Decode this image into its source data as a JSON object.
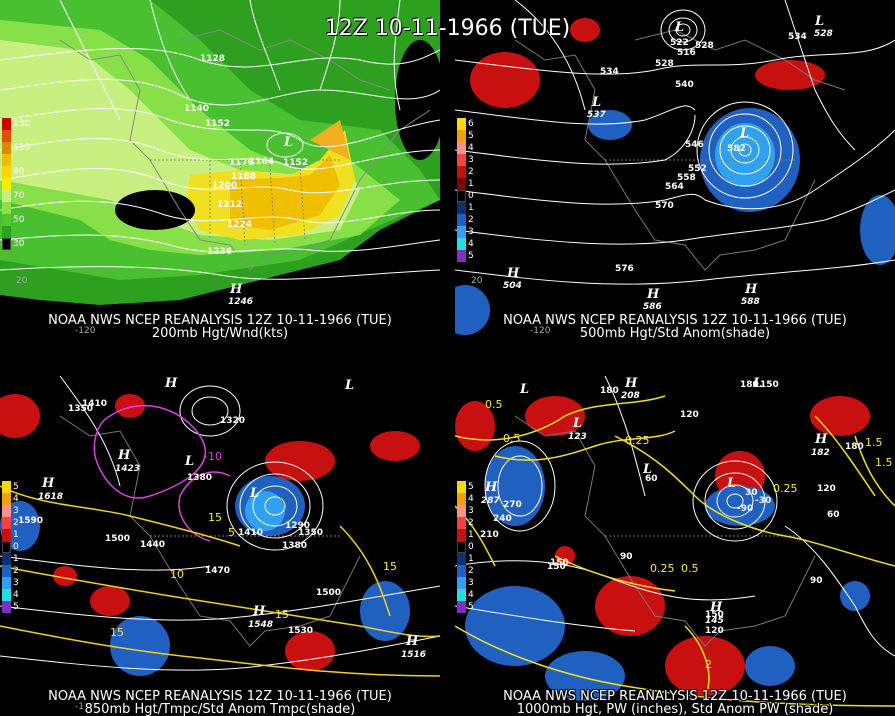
{
  "main_title": "12Z 10-11-1966 (TUE)",
  "panels": [
    {
      "id": "p1",
      "caption_line1": "NOAA NWS NCEP REANALYSIS 12Z 10-11-1966 (TUE)",
      "caption_line2": "200mb Hgt/Wnd(kts)",
      "legend": [
        {
          "label": "130",
          "color": "#cc0000"
        },
        {
          "label": "",
          "color": "#e05000"
        },
        {
          "label": "110",
          "color": "#d88a00"
        },
        {
          "label": "",
          "color": "#e8c000"
        },
        {
          "label": "90",
          "color": "#ffd800"
        },
        {
          "label": "",
          "color": "#f0f000"
        },
        {
          "label": "70",
          "color": "#c8f080"
        },
        {
          "label": "",
          "color": "#90e040"
        },
        {
          "label": "50",
          "color": "#50c830"
        },
        {
          "label": "",
          "color": "#30a020"
        },
        {
          "label": "30",
          "color": "#000000"
        }
      ],
      "contour_labels": [
        "1128",
        "1140",
        "1152",
        "1164",
        "1176",
        "1188",
        "1200",
        "1212",
        "1224",
        "1236",
        "1152",
        "1246"
      ],
      "high_low": [
        "L",
        "H"
      ],
      "edge_labels": [
        "-120",
        "20"
      ]
    },
    {
      "id": "p2",
      "caption_line1": "NOAA NWS NCEP REANALYSIS 12Z 10-11-1966 (TUE)",
      "caption_line2": "500mb Hgt/Std Anom(shade)",
      "legend": [
        {
          "label": "6",
          "color": "#ffd800"
        },
        {
          "label": "5",
          "color": "#f0a000"
        },
        {
          "label": "4",
          "color": "#ff9090"
        },
        {
          "label": "3",
          "color": "#ff4040"
        },
        {
          "label": "2",
          "color": "#c81010"
        },
        {
          "label": "1",
          "color": "#800000"
        },
        {
          "label": "0",
          "color": "#000000"
        },
        {
          "label": "1",
          "color": "#103070"
        },
        {
          "label": "2",
          "color": "#2060c0"
        },
        {
          "label": "3",
          "color": "#30a0f0"
        },
        {
          "label": "4",
          "color": "#20e0e0"
        },
        {
          "label": "5",
          "color": "#8030c0"
        }
      ],
      "contour_labels": [
        "534",
        "528",
        "540",
        "546",
        "552",
        "558",
        "564",
        "570",
        "576",
        "582",
        "522",
        "516",
        "528",
        "534"
      ],
      "high_low": [
        "L",
        "L",
        "L",
        "L",
        "H",
        "H",
        "H"
      ],
      "extrema_values": [
        "537",
        "504",
        "586",
        "588",
        "528"
      ],
      "edge_labels": [
        "-120",
        "20"
      ]
    },
    {
      "id": "p3",
      "caption_line1": "NOAA NWS NCEP REANALYSIS 12Z 10-11-1966 (TUE)",
      "caption_line2": "850mb Hgt/Tmpc/Std Anom Tmpc(shade)",
      "legend": [
        {
          "label": "5",
          "color": "#ffd800"
        },
        {
          "label": "4",
          "color": "#f0a000"
        },
        {
          "label": "3",
          "color": "#ff9090"
        },
        {
          "label": "2",
          "color": "#ff4040"
        },
        {
          "label": "1",
          "color": "#c81010"
        },
        {
          "label": "0",
          "color": "#000000"
        },
        {
          "label": "1",
          "color": "#103070"
        },
        {
          "label": "2",
          "color": "#2060c0"
        },
        {
          "label": "3",
          "color": "#30a0f0"
        },
        {
          "label": "4",
          "color": "#20e0e0"
        },
        {
          "label": "5",
          "color": "#8030c0"
        }
      ],
      "contour_labels": [
        "1350",
        "1410",
        "1440",
        "1500",
        "1380",
        "1470",
        "1530",
        "1320",
        "1290",
        "1350",
        "1380",
        "1500",
        "1590",
        "1410"
      ],
      "temp_labels": [
        "-10",
        "5",
        "10",
        "15",
        "15",
        "15",
        "15"
      ],
      "high_low": [
        "H",
        "H",
        "L",
        "L",
        "L",
        "H",
        "H",
        "H"
      ],
      "extrema_values": [
        "1618",
        "1423",
        "1548",
        "1516"
      ],
      "edge_labels": [
        "-120"
      ]
    },
    {
      "id": "p4",
      "caption_line1": "NOAA NWS NCEP REANALYSIS 12Z 10-11-1966 (TUE)",
      "caption_line2": "1000mb Hgt, PW (inches), Std Anom PW (shade)",
      "legend": [
        {
          "label": "5",
          "color": "#ffd800"
        },
        {
          "label": "4",
          "color": "#f0a000"
        },
        {
          "label": "3",
          "color": "#ff9090"
        },
        {
          "label": "2",
          "color": "#ff4040"
        },
        {
          "label": "1",
          "color": "#c81010"
        },
        {
          "label": "0",
          "color": "#000000"
        },
        {
          "label": "1",
          "color": "#103070"
        },
        {
          "label": "2",
          "color": "#2060c0"
        },
        {
          "label": "3",
          "color": "#30a0f0"
        },
        {
          "label": "4",
          "color": "#20e0e0"
        },
        {
          "label": "5",
          "color": "#8030c0"
        }
      ],
      "contour_labels": [
        "150",
        "180",
        "120",
        "60",
        "210",
        "240",
        "270",
        "180",
        "150",
        "90",
        "120",
        "60",
        "90",
        "120",
        "150",
        "30",
        "-30",
        "-90",
        "180",
        "150"
      ],
      "pw_labels": [
        "0.5",
        "0.5",
        "0.25",
        "0.25",
        "0.5",
        "0.25",
        "1.5",
        "2",
        "1.5"
      ],
      "high_low": [
        "L",
        "L",
        "H",
        "L",
        "H",
        "H",
        "L",
        "L",
        "H"
      ],
      "extrema_values": [
        "123",
        "287",
        "145",
        "182",
        "208"
      ],
      "edge_labels": []
    }
  ]
}
